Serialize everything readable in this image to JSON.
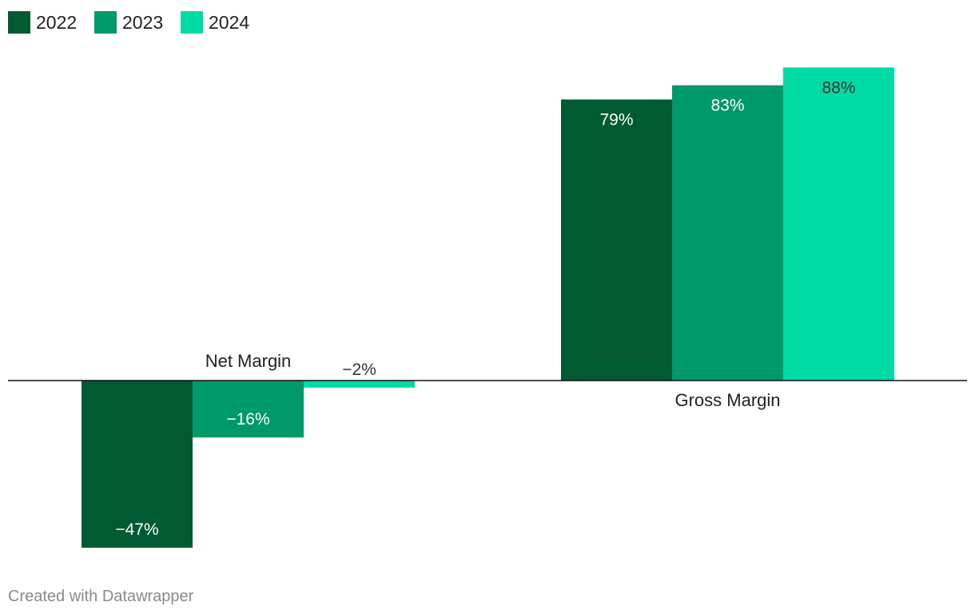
{
  "chart_data": {
    "type": "bar",
    "categories": [
      "Net Margin",
      "Gross Margin"
    ],
    "series": [
      {
        "name": "2022",
        "values": [
          -47,
          79
        ],
        "color": "#005a32"
      },
      {
        "name": "2023",
        "values": [
          -16,
          83
        ],
        "color": "#00996a"
      },
      {
        "name": "2024",
        "values": [
          -2,
          88
        ],
        "color": "#00dba6"
      }
    ],
    "value_suffix": "%",
    "legend_position": "top-left",
    "grid": false
  },
  "footer": {
    "credit": "Created with Datawrapper"
  }
}
